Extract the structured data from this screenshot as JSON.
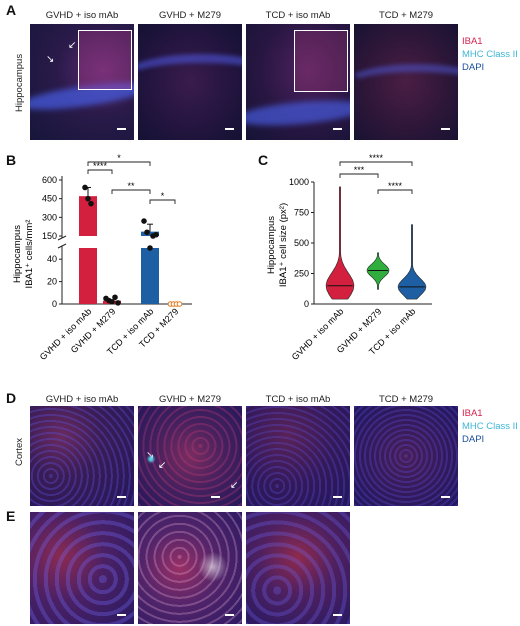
{
  "panel_a": {
    "letter": "A",
    "region": "Hippocampus",
    "columns": [
      "GVHD + iso mAb",
      "GVHD + M279",
      "TCD + iso mAb",
      "TCD + M279"
    ]
  },
  "legend": {
    "iba1": "IBA1",
    "mhc": "MHC Class II",
    "dapi": "DAPI",
    "colors": {
      "iba1": "#d6204d",
      "mhc": "#3fb6d4",
      "dapi": "#1b4f9c"
    }
  },
  "panel_b": {
    "letter": "B",
    "chart_data": {
      "type": "bar",
      "ylabel_line1": "Hippocampus",
      "ylabel_line2": "IBA1⁺ cells/mm²",
      "categories": [
        "GVHD + iso mAb",
        "GVHD + M279",
        "TCD + iso mAb",
        "TCD + M279"
      ],
      "values": [
        470,
        3,
        185,
        0
      ],
      "errors": [
        70,
        1.5,
        60,
        0
      ],
      "colors": [
        "#d3203e",
        "#d3203e",
        "#1e5fa3",
        "#d3203e"
      ],
      "points": [
        [
          540,
          450,
          410
        ],
        [
          5,
          3,
          2,
          6,
          1
        ],
        [
          270,
          180,
          130,
          150,
          160
        ],
        [
          0,
          0,
          0,
          0
        ]
      ],
      "point_colors": [
        "#111111",
        "#111111",
        "#111111",
        "#e07b20"
      ],
      "yticks_upper": [
        "150",
        "300",
        "450",
        "600"
      ],
      "yticks_lower": [
        "0",
        "20",
        "40"
      ],
      "axis_break": [
        50,
        150
      ],
      "significance": [
        {
          "from": 0,
          "to": 2,
          "label": "*"
        },
        {
          "from": 0,
          "to": 1,
          "label": "****"
        },
        {
          "from": 1,
          "to": 2,
          "label": "**"
        },
        {
          "from": 2,
          "to": 3,
          "label": "*"
        }
      ]
    }
  },
  "panel_c": {
    "letter": "C",
    "chart_data": {
      "type": "violin",
      "ylabel_line1": "Hippocampus",
      "ylabel_line2": "IBA1⁺ cell size (px²)",
      "categories": [
        "GVHD + iso mAb",
        "GVHD + M279",
        "TCD + iso mAb"
      ],
      "colors": [
        "#d3203e",
        "#2fae3d",
        "#1e5fa3"
      ],
      "ylim": [
        0,
        1000
      ],
      "yticks": [
        "0",
        "250",
        "500",
        "750",
        "1000"
      ],
      "ranges": [
        [
          40,
          960
        ],
        [
          120,
          420
        ],
        [
          40,
          650
        ]
      ],
      "medians": [
        150,
        275,
        140
      ],
      "significance": [
        {
          "from": 0,
          "to": 2,
          "label": "****"
        },
        {
          "from": 0,
          "to": 1,
          "label": "***"
        },
        {
          "from": 1,
          "to": 2,
          "label": "****"
        }
      ]
    }
  },
  "panel_d": {
    "letter": "D",
    "region": "Cortex",
    "columns": [
      "GVHD + iso mAb",
      "GVHD + M279",
      "TCD + iso mAb",
      "TCD + M279"
    ]
  },
  "panel_e": {
    "letter": "E"
  }
}
